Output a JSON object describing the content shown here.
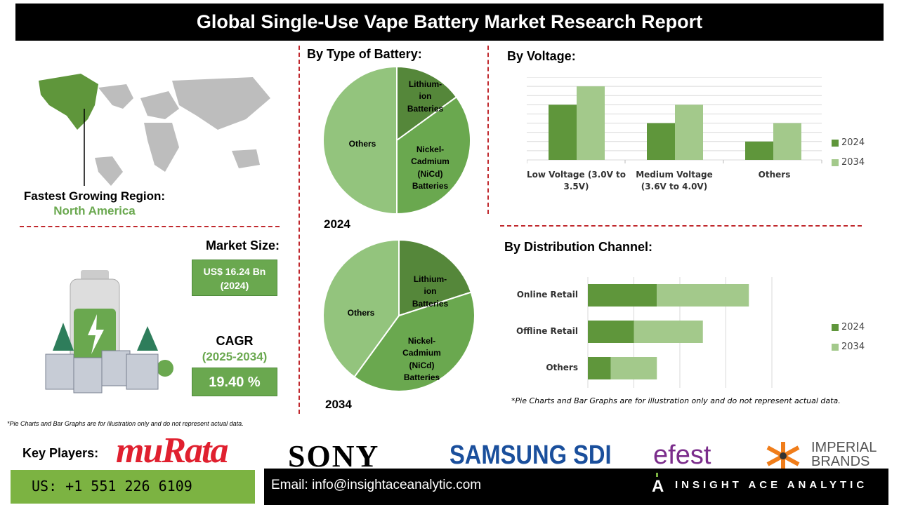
{
  "title": "Global Single-Use Vape Battery Market Research Report",
  "region": {
    "label": "Fastest Growing Region:",
    "value": "North America"
  },
  "market_size": {
    "label": "Market Size:",
    "value": "US$ 16.24 Bn",
    "year": "(2024)"
  },
  "cagr": {
    "label": "CAGR",
    "period": "(2025-2034)",
    "value": "19.40 %"
  },
  "colors": {
    "dark_green": "#5f963b",
    "light_green": "#a3c98b",
    "mid_green": "#6aa84f",
    "pie_light": "#93c47d",
    "red": "#c0282d"
  },
  "chart_data": [
    {
      "type": "pie",
      "title": "By Type of Battery:",
      "caption": "2024",
      "slices": [
        {
          "label": "Lithium-ion Batteries",
          "value": 15
        },
        {
          "label": "Nickel-Cadmium (NiCd) Batteries",
          "value": 35
        },
        {
          "label": "Others",
          "value": 50
        }
      ]
    },
    {
      "type": "pie",
      "caption": "2034",
      "slices": [
        {
          "label": "Lithium-ion Batteries",
          "value": 20
        },
        {
          "label": "Nickel-Cadmium (NiCd) Batteries",
          "value": 40
        },
        {
          "label": "Others",
          "value": 40
        }
      ]
    },
    {
      "type": "bar",
      "title": "By Voltage:",
      "categories": [
        "Low Voltage (3.0V to 3.5V)",
        "Medium Voltage (3.6V to 4.0V)",
        "Others"
      ],
      "series": [
        {
          "name": "2024",
          "values": [
            6,
            4,
            2
          ]
        },
        {
          "name": "2034",
          "values": [
            8,
            6,
            4
          ]
        }
      ],
      "ylim": [
        0,
        9
      ],
      "grid": true,
      "legend": "right"
    },
    {
      "type": "bar",
      "orientation": "horizontal",
      "stacked": true,
      "title": "By Distribution Channel:",
      "categories": [
        "Online Retail",
        "Offline Retail",
        "Others"
      ],
      "series": [
        {
          "name": "2024",
          "values": [
            1.5,
            1.0,
            0.5
          ]
        },
        {
          "name": "2034",
          "values": [
            2.0,
            1.5,
            1.0
          ]
        }
      ],
      "xlim": [
        0,
        4
      ],
      "grid": true,
      "legend": "right"
    }
  ],
  "pie_labels": {
    "lithium": [
      "Lithium-",
      "ion",
      "Batteries"
    ],
    "nicd": [
      "Nickel-",
      "Cadmium",
      "(NiCd)",
      "Batteries"
    ],
    "others": "Others"
  },
  "disclaimer": "*Pie Charts and Bar Graphs are for illustration only and do not represent actual data.",
  "key_players": {
    "label": "Key Players:",
    "logos": [
      "muRata",
      "SONY",
      "SAMSUNG SDI",
      "efest",
      "IMPERIAL BRANDS"
    ]
  },
  "footer": {
    "phone": "US: +1 551 226 6109",
    "email": "Email: info@insightaceanalytic.com",
    "brand": "INSIGHT ACE ANALYTIC"
  }
}
